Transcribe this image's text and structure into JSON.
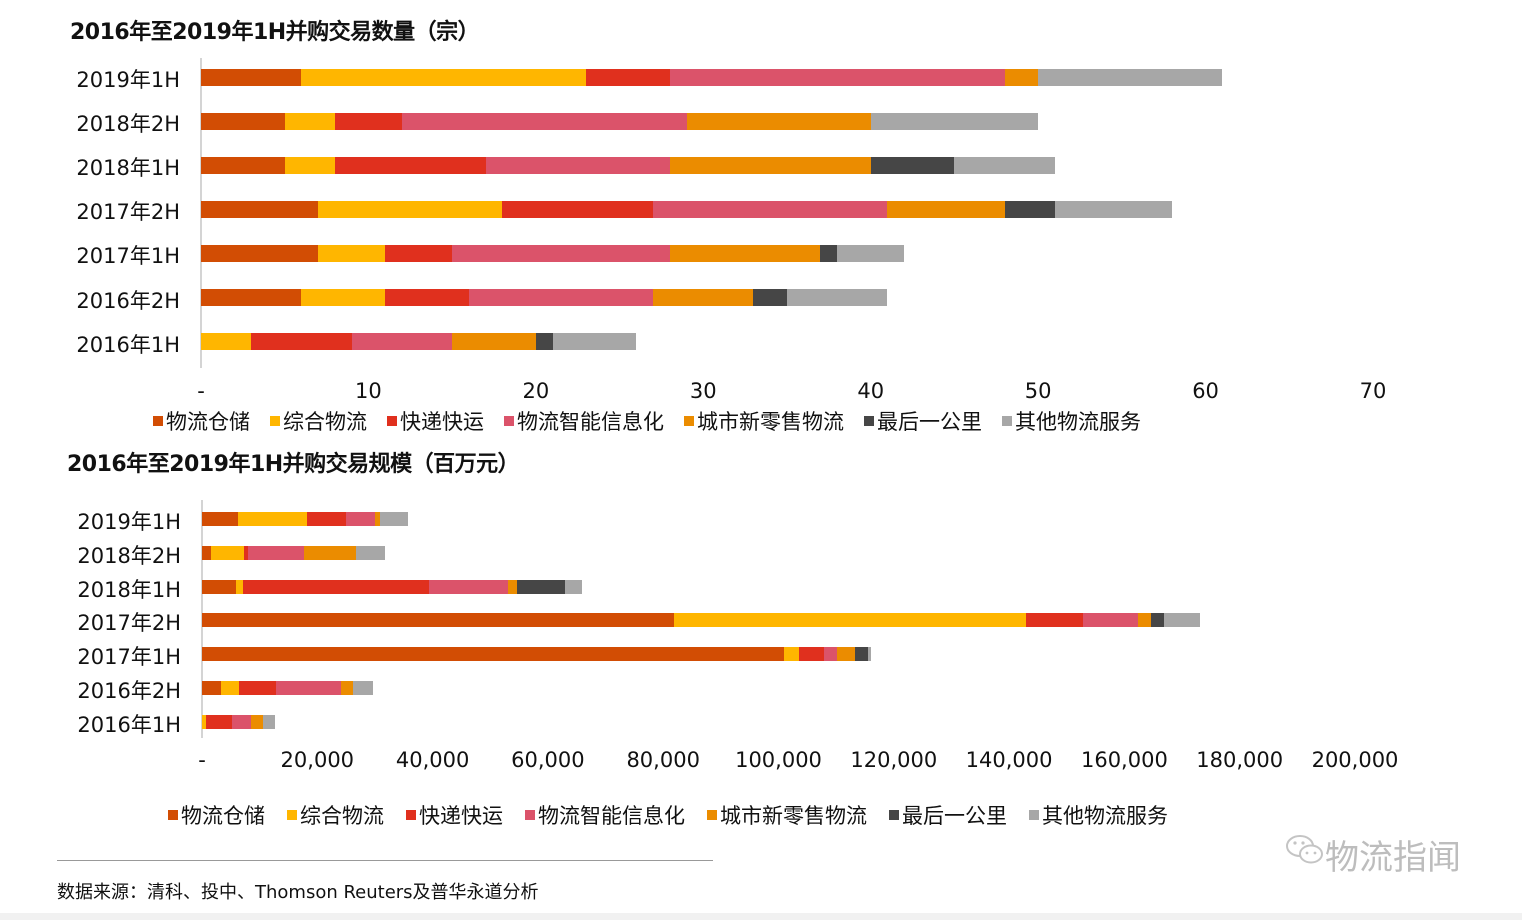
{
  "legend": [
    {
      "label": "物流仓储",
      "color": "#D24D04"
    },
    {
      "label": "综合物流",
      "color": "#FFB600"
    },
    {
      "label": "快递快运",
      "color": "#E0301E"
    },
    {
      "label": "物流智能信息化",
      "color": "#DB536A"
    },
    {
      "label": "城市新零售物流",
      "color": "#EB8C00"
    },
    {
      "label": "最后一公里",
      "color": "#464646"
    },
    {
      "label": "其他物流服务",
      "color": "#A7A7A7"
    }
  ],
  "chart_data": [
    {
      "type": "bar",
      "orientation": "horizontal",
      "stacked": true,
      "title": "2016年至2019年1H并购交易数量（宗）",
      "xlabel": "",
      "ylabel": "",
      "xlim": [
        0,
        70
      ],
      "x_ticks": [
        "-",
        "10",
        "20",
        "30",
        "40",
        "50",
        "60",
        "70"
      ],
      "grid": false,
      "legend_position": "bottom",
      "categories": [
        "2019年1H",
        "2018年2H",
        "2018年1H",
        "2017年2H",
        "2017年1H",
        "2016年2H",
        "2016年1H"
      ],
      "series": [
        {
          "name": "物流仓储",
          "values": [
            6,
            5,
            5,
            7,
            7,
            6,
            0
          ]
        },
        {
          "name": "综合物流",
          "values": [
            17,
            3,
            3,
            11,
            4,
            5,
            3
          ]
        },
        {
          "name": "快递快运",
          "values": [
            5,
            4,
            9,
            9,
            4,
            5,
            6
          ]
        },
        {
          "name": "物流智能信息化",
          "values": [
            20,
            17,
            11,
            14,
            13,
            11,
            6
          ]
        },
        {
          "name": "城市新零售物流",
          "values": [
            2,
            11,
            12,
            7,
            9,
            6,
            5
          ]
        },
        {
          "name": "最后一公里",
          "values": [
            0,
            0,
            5,
            3,
            1,
            2,
            1
          ]
        },
        {
          "name": "其他物流服务",
          "values": [
            11,
            10,
            6,
            7,
            4,
            6,
            5
          ]
        }
      ]
    },
    {
      "type": "bar",
      "orientation": "horizontal",
      "stacked": true,
      "title": "2016年至2019年1H并购交易规模（百万元）",
      "xlabel": "",
      "ylabel": "",
      "xlim": [
        0,
        200000
      ],
      "x_ticks": [
        "-",
        "20,000",
        "40,000",
        "60,000",
        "80,000",
        "100,000",
        "120,000",
        "140,000",
        "160,000",
        "180,000",
        "200,000"
      ],
      "grid": false,
      "legend_position": "bottom",
      "categories": [
        "2019年1H",
        "2018年2H",
        "2018年1H",
        "2017年2H",
        "2017年1H",
        "2016年2H",
        "2016年1H"
      ],
      "series": [
        {
          "name": "物流仓储",
          "values": [
            6200,
            1600,
            5900,
            81900,
            101000,
            3300,
            0
          ]
        },
        {
          "name": "综合物流",
          "values": [
            12000,
            5700,
            1200,
            61100,
            2600,
            3100,
            700
          ]
        },
        {
          "name": "快递快运",
          "values": [
            6800,
            700,
            32300,
            9900,
            4300,
            6400,
            4500
          ]
        },
        {
          "name": "物流智能信息化",
          "values": [
            5000,
            9700,
            13700,
            9400,
            2300,
            11300,
            3300
          ]
        },
        {
          "name": "城市新零售物流",
          "values": [
            900,
            9000,
            1600,
            2300,
            3100,
            2100,
            2100
          ]
        },
        {
          "name": "最后一公里",
          "values": [
            0,
            0,
            8300,
            2300,
            2300,
            0,
            0
          ]
        },
        {
          "name": "其他物流服务",
          "values": [
            4800,
            5000,
            2900,
            6200,
            500,
            3500,
            2100
          ]
        }
      ]
    }
  ],
  "source": "数据来源：清科、投中、Thomson Reuters及普华永道分析",
  "watermark": {
    "icon": "wechat-icon",
    "text": "物流指闻"
  }
}
